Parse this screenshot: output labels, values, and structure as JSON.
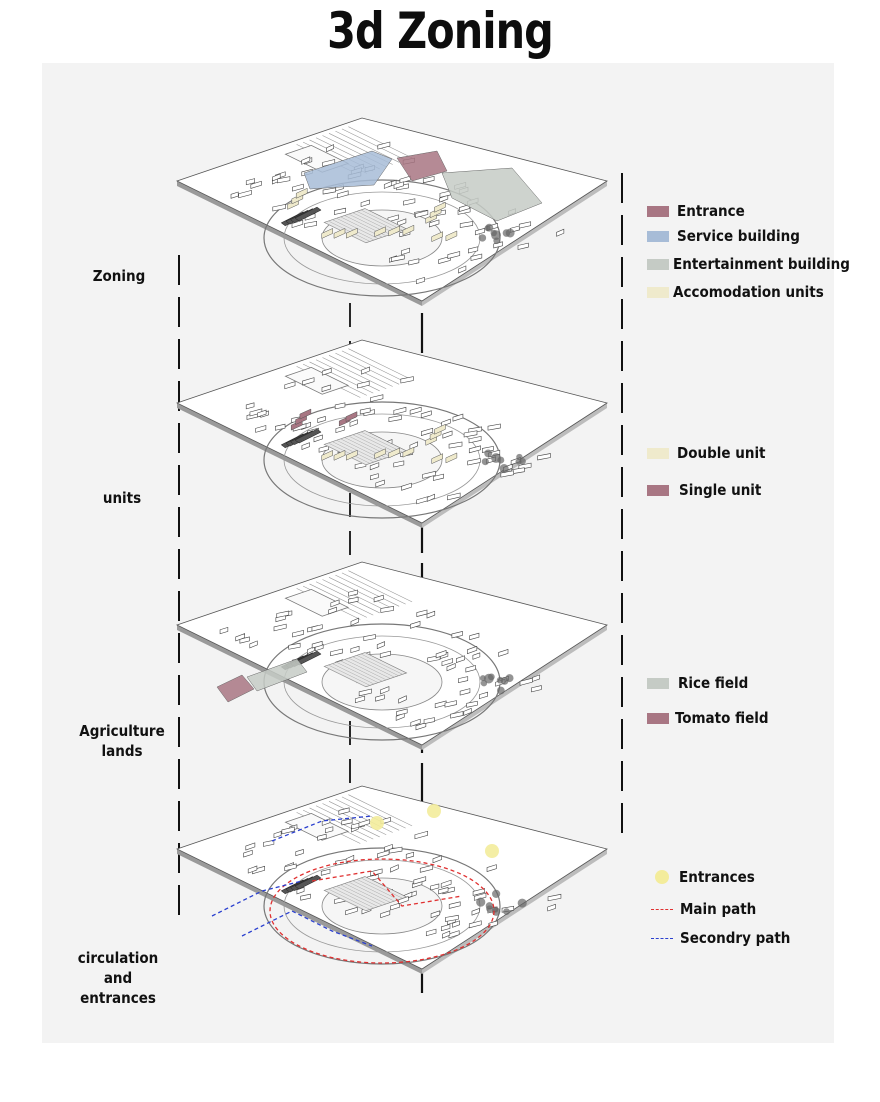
{
  "title": "3d Zoning",
  "side_labels": {
    "zoning": "Zoning",
    "units": "units",
    "agriculture_1": "Agriculture",
    "agriculture_2": "lands",
    "circulation_1": "circulation",
    "circulation_2": "and",
    "circulation_3": "entrances"
  },
  "colors": {
    "entrance": "#a87683",
    "service": "#a7bcd7",
    "entertainment": "#c5cbc5",
    "accommodation": "#efeacc",
    "main_path": "#e03030",
    "secondary_path": "#2a3fcf",
    "entrances_marker": "#f3ec9b"
  },
  "legends": {
    "zoning": [
      {
        "label": "Entrance",
        "color": "#a87683"
      },
      {
        "label": "Service building",
        "color": "#a7bcd7"
      },
      {
        "label": "Entertainment building",
        "color": "#c5cbc5"
      },
      {
        "label": "Accomodation units",
        "color": "#efeacc"
      }
    ],
    "units": [
      {
        "label": "Double unit",
        "color": "#efeacc"
      },
      {
        "label": "Single unit",
        "color": "#a87683"
      }
    ],
    "agriculture": [
      {
        "label": "Rice field",
        "color": "#c5cbc5"
      },
      {
        "label": "Tomato field",
        "color": "#a87683"
      }
    ],
    "circulation": {
      "entrances": "Entrances",
      "main_path": "Main path",
      "secondary_path": "Secondry path"
    }
  }
}
